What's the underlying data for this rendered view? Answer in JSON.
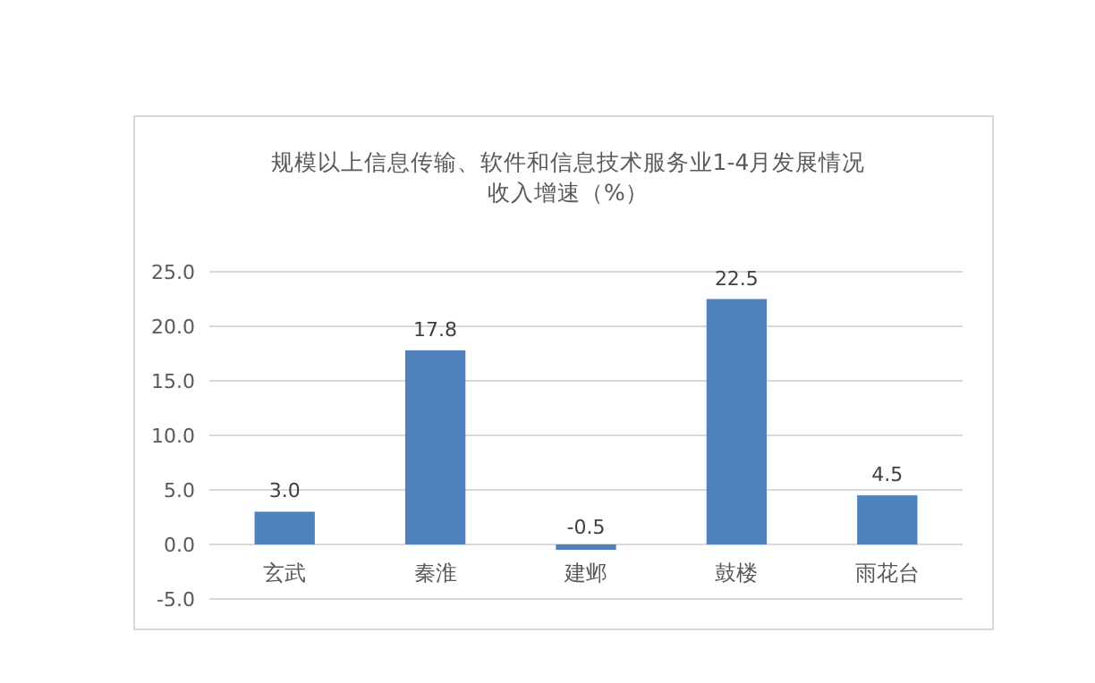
{
  "chart_data": {
    "type": "bar",
    "title": "规模以上信息传输、软件和信息技术服务业1-4月发展情况",
    "subtitle": "收入增速（%）",
    "categories": [
      "玄武",
      "秦淮",
      "建邺",
      "鼓楼",
      "雨花台"
    ],
    "values": [
      3.0,
      17.8,
      -0.5,
      22.5,
      4.5
    ],
    "value_labels": [
      "3.0",
      "17.8",
      "-0.5",
      "22.5",
      "4.5"
    ],
    "color": "#4f81bd",
    "ylim": [
      -5,
      25
    ],
    "yticks": [
      {
        "value": -5,
        "label": "-5.0"
      },
      {
        "value": 0,
        "label": "0.0"
      },
      {
        "value": 5,
        "label": "5.0"
      },
      {
        "value": 10,
        "label": "10.0"
      },
      {
        "value": 15,
        "label": "15.0"
      },
      {
        "value": 20,
        "label": "20.0"
      },
      {
        "value": 25,
        "label": "25.0"
      }
    ],
    "grid": true
  }
}
